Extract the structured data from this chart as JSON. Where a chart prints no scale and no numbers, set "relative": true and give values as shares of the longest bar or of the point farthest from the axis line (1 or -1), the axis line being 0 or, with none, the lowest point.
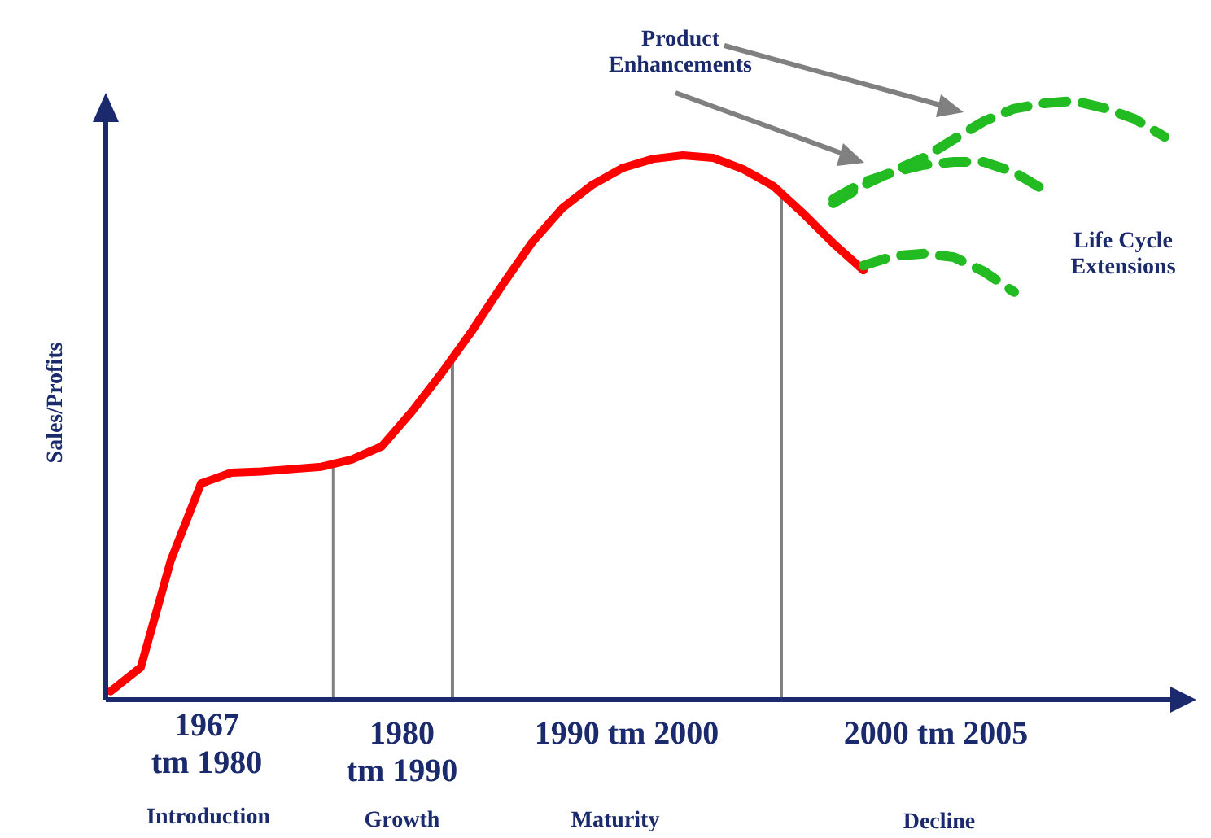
{
  "chart_data": {
    "type": "line",
    "relative": true,
    "ylabel": "Sales/Profits",
    "categories": [
      null,
      null,
      null,
      null,
      null,
      null,
      null,
      null,
      null,
      null,
      null,
      null,
      null,
      null,
      null,
      null,
      null,
      null,
      null,
      null,
      null,
      null,
      null,
      null,
      null,
      null,
      null,
      null,
      null,
      null,
      null,
      null,
      null,
      null,
      null,
      null
    ],
    "series": [
      {
        "color": "#ff0000",
        "line_style": "solid",
        "values": [
          0.014,
          0.054,
          0.233,
          0.361,
          0.379,
          0.381,
          0.385,
          0.389,
          0.401,
          0.423,
          0.481,
          0.546,
          0.616,
          0.692,
          0.764,
          0.821,
          0.86,
          0.888,
          0.903,
          0.909,
          0.905,
          0.886,
          0.858,
          0.812,
          0.762,
          0.717,
          null,
          null,
          null,
          null,
          null,
          null,
          null,
          null,
          null,
          null
        ]
      },
      {
        "color": "#22bb22",
        "line_style": "dashed",
        "values": [
          null,
          null,
          null,
          null,
          null,
          null,
          null,
          null,
          null,
          null,
          null,
          null,
          null,
          null,
          null,
          null,
          null,
          null,
          null,
          null,
          null,
          null,
          null,
          null,
          0.829,
          0.859,
          0.883,
          0.905,
          0.936,
          0.966,
          0.987,
          0.996,
          1,
          0.988,
          0.97,
          0.94
        ]
      },
      {
        "color": "#22bb22",
        "line_style": "dashed",
        "values": [
          null,
          null,
          null,
          null,
          null,
          null,
          null,
          null,
          null,
          null,
          null,
          null,
          null,
          null,
          null,
          null,
          null,
          null,
          null,
          null,
          null,
          null,
          null,
          null,
          0.836,
          0.864,
          0.881,
          0.893,
          0.898,
          0.898,
          0.881,
          0.851,
          null,
          null,
          null,
          null
        ]
      },
      {
        "color": "#22bb22",
        "line_style": "dashed",
        "values": [
          null,
          null,
          null,
          null,
          null,
          null,
          null,
          null,
          null,
          null,
          null,
          null,
          null,
          null,
          null,
          null,
          null,
          null,
          null,
          null,
          null,
          null,
          null,
          null,
          null,
          0.725,
          0.741,
          0.745,
          0.739,
          0.715,
          0.681,
          null,
          null,
          null,
          null,
          null
        ]
      }
    ],
    "annotations": [
      "1967\ntm 1980",
      "Introduction",
      "1980\ntm 1990",
      "Growth",
      "1990 tm 2000",
      "Maturity",
      "2000 tm 2005",
      "Decline",
      "Product\nEnhancements",
      "Life Cycle\nExtensions"
    ]
  }
}
